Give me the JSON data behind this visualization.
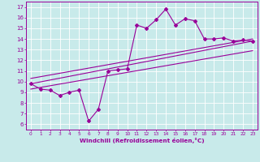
{
  "bg_color": "#c8eaea",
  "line_color": "#990099",
  "grid_color": "#ffffff",
  "xlabel": "Windchill (Refroidissement éolien,°C)",
  "ylabel_ticks": [
    6,
    7,
    8,
    9,
    10,
    11,
    12,
    13,
    14,
    15,
    16,
    17
  ],
  "xlabel_ticks": [
    0,
    1,
    2,
    3,
    4,
    5,
    6,
    7,
    8,
    9,
    10,
    11,
    12,
    13,
    14,
    15,
    16,
    17,
    18,
    19,
    20,
    21,
    22,
    23
  ],
  "series1_x": [
    0,
    1,
    2,
    3,
    4,
    5,
    6,
    7,
    8,
    9,
    10,
    11,
    12,
    13,
    14,
    15,
    16,
    17,
    18,
    19,
    20,
    21,
    22,
    23
  ],
  "series1_y": [
    9.8,
    9.3,
    9.2,
    8.7,
    9.0,
    9.2,
    6.3,
    7.4,
    11.0,
    11.1,
    11.2,
    15.3,
    15.0,
    15.8,
    16.8,
    15.3,
    15.9,
    15.7,
    14.0,
    14.0,
    14.1,
    13.8,
    13.9,
    13.8
  ],
  "series2_x": [
    0,
    23
  ],
  "series2_y": [
    9.8,
    13.8
  ],
  "series3_x": [
    0,
    23
  ],
  "series3_y": [
    9.3,
    12.9
  ],
  "series4_x": [
    0,
    23
  ],
  "series4_y": [
    10.3,
    14.0
  ],
  "xlim": [
    -0.5,
    23.5
  ],
  "ylim": [
    5.5,
    17.5
  ]
}
